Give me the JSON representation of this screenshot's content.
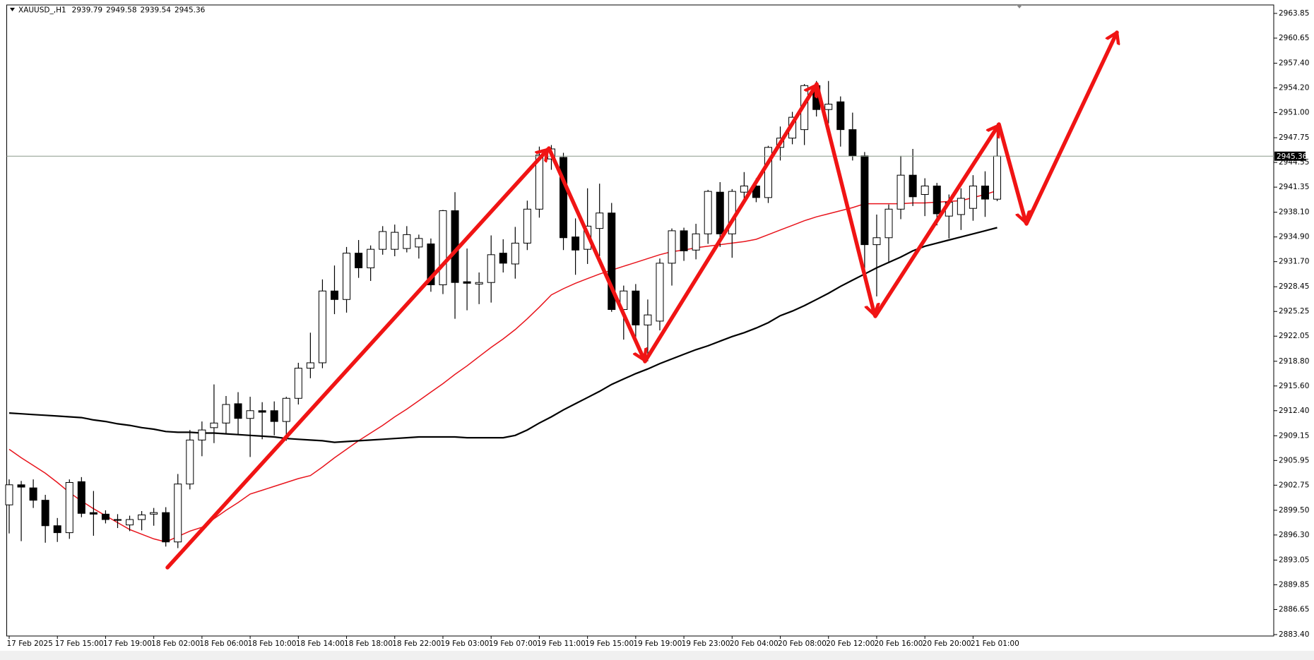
{
  "chart_data": {
    "type": "candlestick",
    "title": "XAUUSD_,H1",
    "categories": [
      "17 Feb 2025",
      null,
      null,
      null,
      "17 Feb 15:00",
      null,
      null,
      null,
      "17 Feb 19:00",
      null,
      null,
      null,
      "18 Feb 02:00",
      null,
      null,
      null,
      "18 Feb 06:00",
      null,
      null,
      null,
      "18 Feb 10:00",
      null,
      null,
      null,
      "18 Feb 14:00",
      null,
      null,
      null,
      "18 Feb 18:00",
      null,
      null,
      null,
      "18 Feb 22:00",
      null,
      null,
      null,
      "19 Feb 03:00",
      null,
      null,
      null,
      "19 Feb 07:00",
      null,
      null,
      null,
      "19 Feb 11:00",
      null,
      null,
      null,
      "19 Feb 15:00",
      null,
      null,
      null,
      "19 Feb 19:00",
      null,
      null,
      null,
      "19 Feb 23:00",
      null,
      null,
      null,
      "20 Feb 04:00",
      null,
      null,
      null,
      "20 Feb 08:00",
      null,
      null,
      null,
      "20 Feb 12:00",
      null,
      null,
      null,
      "20 Feb 16:00",
      null,
      null,
      null,
      "20 Feb 20:00",
      null,
      null,
      null,
      "21 Feb 01:00",
      null,
      null
    ],
    "open": [
      2900.2,
      2902.8,
      2902.4,
      2900.8,
      2897.5,
      2896.6,
      2903.2,
      2899.2,
      2899.0,
      2898.3,
      2897.6,
      2898.3,
      2899.0,
      2899.2,
      2895.4,
      2902.9,
      2908.6,
      2910.2,
      2910.8,
      2913.3,
      2911.4,
      2912.4,
      2912.4,
      2911.0,
      2914.0,
      2917.9,
      2918.6,
      2927.9,
      2926.8,
      2932.8,
      2930.9,
      2933.3,
      2933.3,
      2933.4,
      2933.6,
      2934.0,
      2928.7,
      2938.3,
      2929.1,
      2928.8,
      2929.0,
      2932.8,
      2931.4,
      2934.1,
      2938.5,
      2945.0,
      2945.2,
      2934.9,
      2933.3,
      2936.0,
      2938.0,
      2925.5,
      2927.9,
      2923.5,
      2924.0,
      2931.5,
      2935.7,
      2933.2,
      2935.3,
      2940.7,
      2935.3,
      2940.7,
      2941.5,
      2940.0,
      2946.5,
      2947.7,
      2948.8,
      2954.5,
      2951.4,
      2952.4,
      2948.8,
      2945.4,
      2933.9,
      2934.8,
      2938.5,
      2942.9,
      2940.4,
      2941.5,
      2937.6,
      2937.8,
      2938.6,
      2941.5,
      2939.79
    ],
    "high": [
      2903.5,
      2903.3,
      2903.5,
      2901.5,
      2898.5,
      2903.5,
      2903.8,
      2902.0,
      2899.5,
      2899.0,
      2898.8,
      2899.4,
      2899.8,
      2899.9,
      2904.2,
      2909.9,
      2911.0,
      2915.8,
      2914.3,
      2914.8,
      2914.2,
      2913.5,
      2913.6,
      2914.2,
      2918.6,
      2922.5,
      2929.4,
      2931.2,
      2933.6,
      2934.5,
      2933.8,
      2936.3,
      2936.5,
      2936.3,
      2935.2,
      2934.7,
      2938.4,
      2940.7,
      2933.4,
      2930.3,
      2935.1,
      2934.6,
      2936.2,
      2939.6,
      2946.6,
      2946.8,
      2945.8,
      2937.3,
      2941.2,
      2941.8,
      2939.3,
      2928.6,
      2928.8,
      2926.8,
      2932.1,
      2936.0,
      2936.1,
      2936.6,
      2941.0,
      2942.0,
      2941.1,
      2943.3,
      2942.5,
      2946.7,
      2949.2,
      2951.1,
      2954.7,
      2955.1,
      2955.1,
      2953.1,
      2951.0,
      2945.9,
      2937.8,
      2939.1,
      2945.4,
      2946.3,
      2942.5,
      2941.9,
      2940.4,
      2941.2,
      2942.9,
      2943.4,
      2949.58
    ],
    "low": [
      2896.5,
      2895.5,
      2899.8,
      2895.3,
      2895.4,
      2895.8,
      2898.6,
      2896.2,
      2897.8,
      2897.2,
      2896.8,
      2896.9,
      2897.5,
      2894.8,
      2894.6,
      2902.2,
      2906.5,
      2908.2,
      2909.5,
      2909.3,
      2906.4,
      2908.7,
      2909.2,
      2908.5,
      2913.2,
      2916.6,
      2917.9,
      2924.9,
      2925.1,
      2929.6,
      2929.2,
      2932.6,
      2932.4,
      2932.9,
      2932.1,
      2927.8,
      2927.5,
      2924.3,
      2925.4,
      2926.2,
      2926.4,
      2930.3,
      2929.5,
      2933.2,
      2937.4,
      2943.6,
      2933.2,
      2930.0,
      2931.4,
      2932.4,
      2925.2,
      2921.6,
      2921.8,
      2918.8,
      2922.8,
      2928.6,
      2931.8,
      2932.0,
      2934.0,
      2933.6,
      2932.2,
      2939.6,
      2939.4,
      2939.3,
      2944.8,
      2946.9,
      2946.8,
      2950.5,
      2949.6,
      2946.6,
      2944.8,
      2929.7,
      2927.2,
      2931.5,
      2937.2,
      2938.9,
      2937.6,
      2936.4,
      2934.7,
      2935.8,
      2937.0,
      2937.5,
      2939.54
    ],
    "close": [
      2902.8,
      2902.5,
      2900.8,
      2897.5,
      2896.6,
      2903.1,
      2899.1,
      2899.0,
      2898.3,
      2898.2,
      2898.3,
      2898.9,
      2899.2,
      2895.4,
      2902.9,
      2908.6,
      2909.9,
      2910.8,
      2913.2,
      2911.4,
      2912.4,
      2912.2,
      2911.0,
      2914.0,
      2917.9,
      2918.6,
      2927.9,
      2926.8,
      2932.8,
      2930.9,
      2933.3,
      2935.6,
      2935.5,
      2935.2,
      2934.7,
      2928.7,
      2938.3,
      2929.0,
      2928.9,
      2929.0,
      2932.6,
      2931.5,
      2934.1,
      2938.5,
      2945.5,
      2946.3,
      2934.8,
      2933.2,
      2936.3,
      2938.0,
      2925.5,
      2927.9,
      2923.5,
      2924.8,
      2931.5,
      2935.7,
      2933.1,
      2935.3,
      2940.8,
      2935.3,
      2940.8,
      2941.5,
      2940.0,
      2946.5,
      2947.7,
      2950.4,
      2954.5,
      2951.4,
      2952.1,
      2948.8,
      2945.4,
      2933.9,
      2934.8,
      2938.5,
      2942.9,
      2940.1,
      2941.5,
      2937.9,
      2939.4,
      2939.9,
      2941.5,
      2939.8,
      2945.36
    ],
    "up_color": "#ffffff",
    "down_color": "#000000",
    "ma_lines": [
      {
        "color": "#e8141c",
        "values": [
          2907.4,
          2906.3,
          2905.3,
          2904.3,
          2903.1,
          2901.8,
          2900.7,
          2899.7,
          2898.8,
          2897.9,
          2897.0,
          2896.4,
          2895.8,
          2895.4,
          2896.1,
          2896.8,
          2897.3,
          2898.4,
          2899.5,
          2900.5,
          2901.6,
          2902.1,
          2902.6,
          2903.1,
          2903.6,
          2904.0,
          2905.1,
          2906.3,
          2907.4,
          2908.5,
          2909.5,
          2910.5,
          2911.6,
          2912.6,
          2913.7,
          2914.8,
          2915.9,
          2917.1,
          2918.2,
          2919.4,
          2920.6,
          2921.7,
          2922.9,
          2924.3,
          2925.8,
          2927.4,
          2928.2,
          2928.9,
          2929.5,
          2930.1,
          2930.6,
          2931.1,
          2931.6,
          2932.1,
          2932.6,
          2933.0,
          2933.2,
          2933.5,
          2933.7,
          2933.9,
          2934.1,
          2934.3,
          2934.6,
          2935.2,
          2935.8,
          2936.4,
          2937.0,
          2937.5,
          2937.9,
          2938.3,
          2938.7,
          2939.2,
          2939.2,
          2939.2,
          2939.2,
          2939.3,
          2939.3,
          2939.4,
          2939.5,
          2939.6,
          2940.0,
          2940.4,
          2940.9
        ]
      },
      {
        "color": "#000000",
        "values": [
          2912.1,
          2912.0,
          2911.9,
          2911.8,
          2911.7,
          2911.6,
          2911.5,
          2911.2,
          2911.0,
          2910.7,
          2910.5,
          2910.2,
          2910.0,
          2909.7,
          2909.6,
          2909.6,
          2909.5,
          2909.5,
          2909.4,
          2909.3,
          2909.2,
          2909.1,
          2909.0,
          2908.8,
          2908.7,
          2908.6,
          2908.5,
          2908.3,
          2908.4,
          2908.5,
          2908.6,
          2908.7,
          2908.8,
          2908.9,
          2909.0,
          2909.0,
          2909.0,
          2909.0,
          2908.9,
          2908.9,
          2908.9,
          2908.9,
          2909.2,
          2909.9,
          2910.8,
          2911.6,
          2912.5,
          2913.3,
          2914.1,
          2914.9,
          2915.8,
          2916.5,
          2917.2,
          2917.8,
          2918.5,
          2919.1,
          2919.7,
          2920.3,
          2920.8,
          2921.4,
          2922.0,
          2922.5,
          2923.1,
          2923.8,
          2924.7,
          2925.3,
          2926.0,
          2926.8,
          2927.6,
          2928.5,
          2929.3,
          2930.1,
          2930.9,
          2931.6,
          2932.3,
          2933.1,
          2933.7,
          2934.1,
          2934.5,
          2934.9,
          2935.3,
          2935.7,
          2936.1
        ]
      }
    ],
    "ylim": [
      2883.4,
      2963.85
    ],
    "yticks": [
      {
        "value": 2963.85,
        "label": "2963.85"
      },
      {
        "value": 2960.65,
        "label": "2960.65"
      },
      {
        "value": 2957.4,
        "label": "2957.40"
      },
      {
        "value": 2954.2,
        "label": "2954.20"
      },
      {
        "value": 2951.0,
        "label": "2951.00"
      },
      {
        "value": 2947.75,
        "label": "2947.75"
      },
      {
        "value": 2944.55,
        "label": "2944.55"
      },
      {
        "value": 2941.35,
        "label": "2941.35"
      },
      {
        "value": 2938.1,
        "label": "2938.10"
      },
      {
        "value": 2934.9,
        "label": "2934.90"
      },
      {
        "value": 2931.7,
        "label": "2931.70"
      },
      {
        "value": 2928.45,
        "label": "2928.45"
      },
      {
        "value": 2925.25,
        "label": "2925.25"
      },
      {
        "value": 2922.05,
        "label": "2922.05"
      },
      {
        "value": 2918.8,
        "label": "2918.80"
      },
      {
        "value": 2915.6,
        "label": "2915.60"
      },
      {
        "value": 2912.4,
        "label": "2912.40"
      },
      {
        "value": 2909.15,
        "label": "2909.15"
      },
      {
        "value": 2905.95,
        "label": "2905.95"
      },
      {
        "value": 2902.75,
        "label": "2902.75"
      },
      {
        "value": 2899.5,
        "label": "2899.50"
      },
      {
        "value": 2896.3,
        "label": "2896.30"
      },
      {
        "value": 2893.05,
        "label": "2893.05"
      },
      {
        "value": 2889.85,
        "label": "2889.85"
      },
      {
        "value": 2886.65,
        "label": "2886.65"
      },
      {
        "value": 2883.4,
        "label": "2883.40"
      }
    ],
    "grid": false
  }
}
